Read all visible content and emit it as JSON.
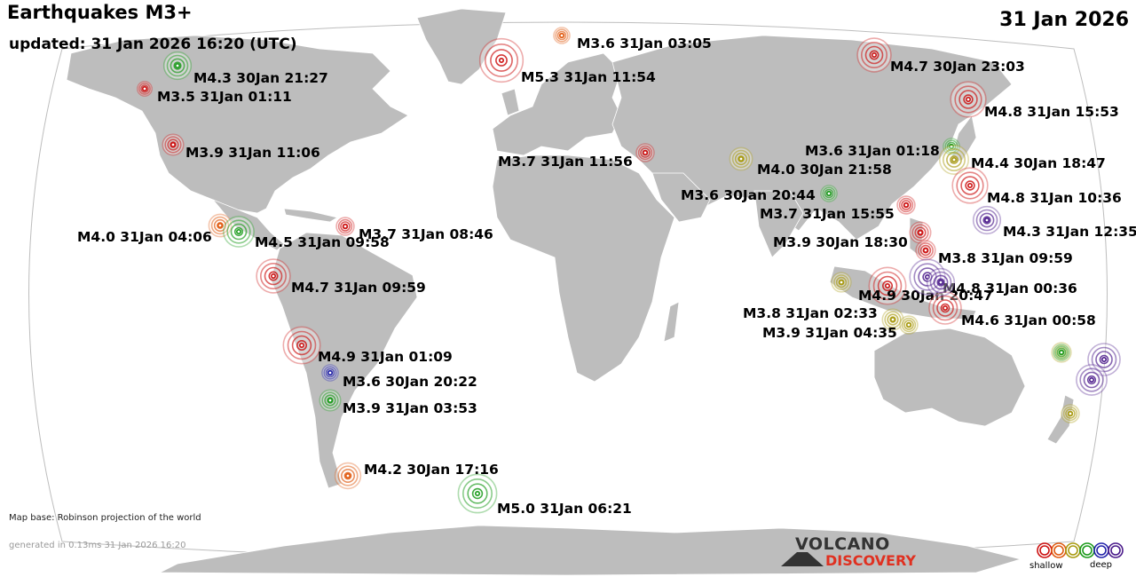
{
  "header": {
    "title": "Earthquakes M3+",
    "updated": "updated: 31 Jan 2026 16:20 (UTC)",
    "date": "31 Jan 2026"
  },
  "footer": {
    "map_base": "Map base: Robinson projection of the world",
    "generated": "generated in 0.13ms 31 Jan 2026 16:20",
    "logo_line1": "VOLCANO",
    "logo_line2": "DISCOVERY"
  },
  "legend": {
    "shallow_label": "shallow",
    "deep_label": "deep",
    "depth_colors": [
      "#cc1111",
      "#e05a10",
      "#a89a10",
      "#1a9a1a",
      "#2222aa",
      "#4a1a8a"
    ]
  },
  "colors": {
    "land": "#bdbdbd",
    "ocean": "#ffffff",
    "red": "#cc1111",
    "orange": "#e05a10",
    "olive": "#a89a10",
    "green": "#1a9a1a",
    "blue": "#2222aa",
    "purple": "#4a1a8a"
  },
  "quakes": [
    {
      "label": "M3.6 31Jan 03:05",
      "mag": 3.6,
      "color": "orange"
    },
    {
      "label": "M5.3 31Jan 11:54",
      "mag": 5.3,
      "color": "red"
    },
    {
      "label": "M4.7 30Jan 23:03",
      "mag": 4.7,
      "color": "red"
    },
    {
      "label": "M4.3 30Jan 21:27",
      "mag": 4.3,
      "color": "green"
    },
    {
      "label": "M3.5 31Jan 01:11",
      "mag": 3.5,
      "color": "red"
    },
    {
      "label": "M4.8 31Jan 15:53",
      "mag": 4.8,
      "color": "red"
    },
    {
      "label": "M3.9 31Jan 11:06",
      "mag": 3.9,
      "color": "red"
    },
    {
      "label": "M3.6 31Jan 01:18",
      "mag": 3.6,
      "color": "green"
    },
    {
      "label": "M3.7 31Jan 11:56",
      "mag": 3.7,
      "color": "red"
    },
    {
      "label": "M4.0 30Jan 21:58",
      "mag": 4.0,
      "color": "olive"
    },
    {
      "label": "M4.4 30Jan 18:47",
      "mag": 4.4,
      "color": "olive"
    },
    {
      "label": "M4.8 31Jan 10:36",
      "mag": 4.8,
      "color": "red"
    },
    {
      "label": "M3.6 30Jan 20:44",
      "mag": 3.6,
      "color": "green"
    },
    {
      "label": "M3.7 31Jan 15:55",
      "mag": 3.7,
      "color": "red"
    },
    {
      "label": "M4.3 31Jan 12:35",
      "mag": 4.3,
      "color": "purple"
    },
    {
      "label": "M4.0 31Jan 04:06",
      "mag": 4.0,
      "color": "orange"
    },
    {
      "label": "M4.5 31Jan 09:58",
      "mag": 4.5,
      "color": "green"
    },
    {
      "label": "M3.7 31Jan 08:46",
      "mag": 3.7,
      "color": "red"
    },
    {
      "label": "M3.9 30Jan 18:30",
      "mag": 3.9,
      "color": "red"
    },
    {
      "label": "M3.8 31Jan 09:59",
      "mag": 3.8,
      "color": "red"
    },
    {
      "label": "M4.7 31Jan 09:59",
      "mag": 4.7,
      "color": "red"
    },
    {
      "label": "M4.9 30Jan 20:47",
      "mag": 4.9,
      "color": "red"
    },
    {
      "label": "M4.8 31Jan 00:36",
      "mag": 4.8,
      "color": "purple"
    },
    {
      "label": "M3.8 31Jan 02:33",
      "mag": 3.8,
      "color": "olive"
    },
    {
      "label": "M4.6 31Jan 00:58",
      "mag": 4.6,
      "color": "red"
    },
    {
      "label": "M3.9 31Jan 04:35",
      "mag": 3.9,
      "color": "olive"
    },
    {
      "label": "M4.9 31Jan 01:09",
      "mag": 4.9,
      "color": "red"
    },
    {
      "label": "M3.6 30Jan 20:22",
      "mag": 3.6,
      "color": "blue"
    },
    {
      "label": "M3.9 31Jan 03:53",
      "mag": 3.9,
      "color": "green"
    },
    {
      "label": "M4.2 30Jan 17:16",
      "mag": 4.2,
      "color": "orange"
    },
    {
      "label": "M5.0 31Jan 06:21",
      "mag": 5.0,
      "color": "green"
    },
    {
      "label": "",
      "mag": 3.7,
      "color": "olive"
    },
    {
      "label": "",
      "mag": 3.8,
      "color": "olive"
    },
    {
      "label": "",
      "mag": 4.6,
      "color": "purple"
    },
    {
      "label": "",
      "mag": 3.6,
      "color": "green"
    },
    {
      "label": "",
      "mag": 4.5,
      "color": "purple"
    },
    {
      "label": "",
      "mag": 4.3,
      "color": "purple"
    },
    {
      "label": "",
      "mag": 3.7,
      "color": "olive"
    }
  ]
}
